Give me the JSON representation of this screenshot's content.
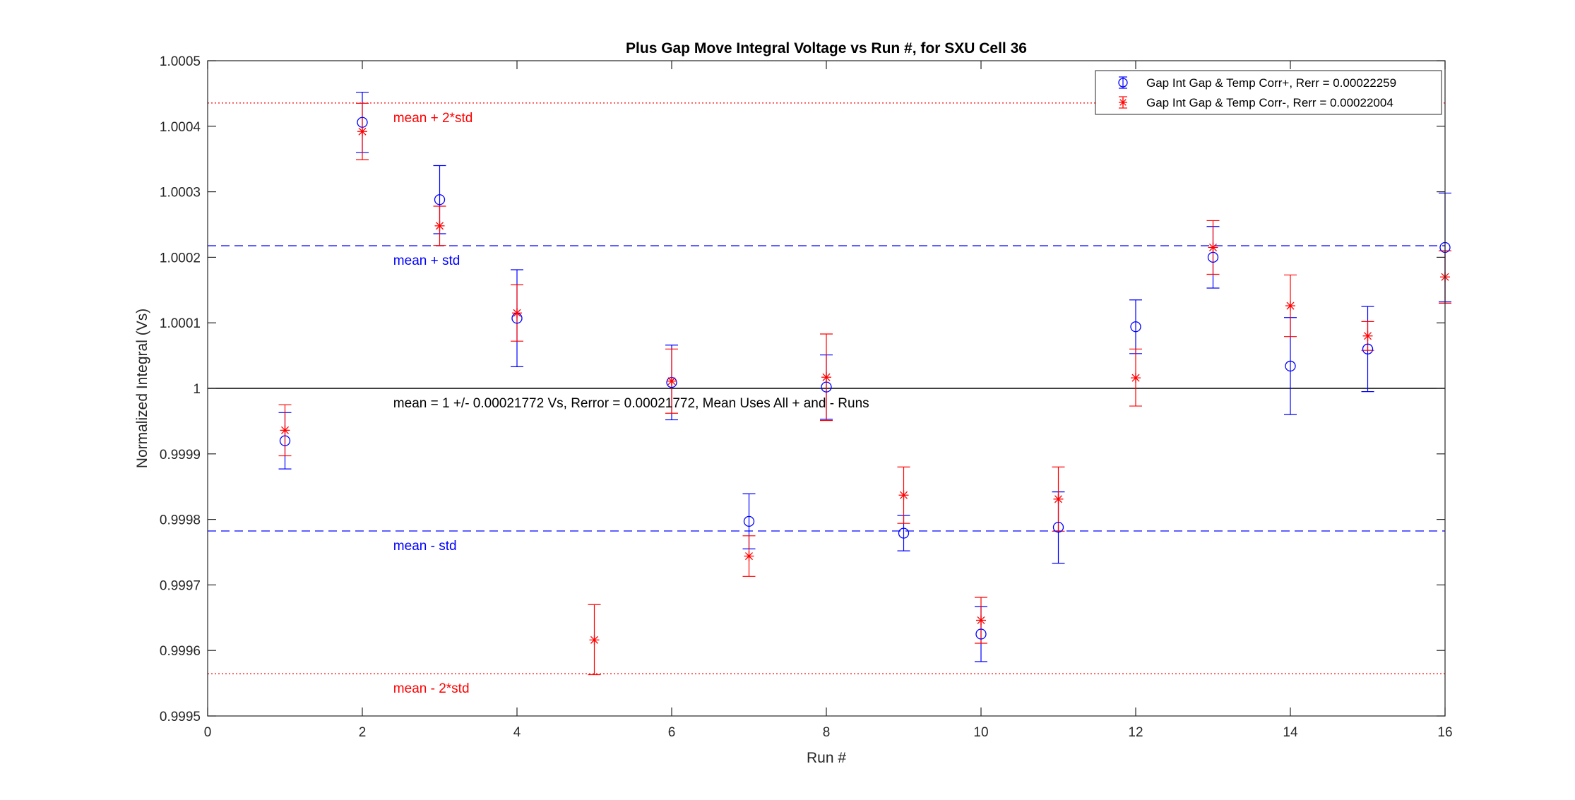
{
  "chart_data": {
    "type": "scatter",
    "title": "Plus Gap Move Integral Voltage vs Run #, for SXU Cell 36",
    "xlabel": "Run #",
    "ylabel": "Normalized Integral (Vs)",
    "xlim": [
      0,
      16
    ],
    "ylim": [
      0.9995,
      1.0005
    ],
    "x_ticks": [
      0,
      2,
      4,
      6,
      8,
      10,
      12,
      14,
      16
    ],
    "x_tick_labels": [
      "0",
      "2",
      "4",
      "6",
      "8",
      "10",
      "12",
      "14",
      "16"
    ],
    "y_ticks": [
      0.9995,
      0.9996,
      0.9997,
      0.9998,
      0.9999,
      1.0,
      1.0001,
      1.0002,
      1.0003,
      1.0004,
      1.0005
    ],
    "y_tick_labels": [
      "0.9995",
      "0.9996",
      "0.9997",
      "0.9998",
      "0.9999",
      "1",
      "1.0001",
      "1.0002",
      "1.0003",
      "1.0004",
      "1.0005"
    ],
    "grid": false,
    "legend_position": "top-right",
    "series": [
      {
        "name": "Gap Int Gap & Temp Corr+, Rerr = 0.00022259",
        "marker": "circle",
        "color": "#0000ff",
        "x": [
          1,
          2,
          3,
          4,
          6,
          7,
          8,
          9,
          10,
          11,
          12,
          13,
          14,
          15,
          16
        ],
        "y": [
          0.99992,
          1.000406,
          1.000288,
          1.000107,
          1.000009,
          0.999797,
          1.000002,
          0.999779,
          0.999625,
          0.999788,
          1.000094,
          1.0002,
          1.000034,
          1.00006,
          1.000215
        ],
        "err_upper": [
          0.999963,
          1.000452,
          1.00034,
          1.000181,
          1.000066,
          0.999839,
          1.000051,
          0.999806,
          0.999667,
          0.999842,
          1.000135,
          1.000247,
          1.000108,
          1.000125,
          1.000298
        ],
        "err_lower": [
          0.999877,
          1.00036,
          1.000236,
          1.000033,
          0.999952,
          0.999755,
          0.999953,
          0.999752,
          0.999583,
          0.999733,
          1.000053,
          1.000153,
          0.99996,
          0.999995,
          1.000132
        ]
      },
      {
        "name": "Gap Int Gap & Temp  Corr-, Rerr = 0.00022004",
        "marker": "asterisk",
        "color": "#ff0000",
        "x": [
          1,
          2,
          3,
          4,
          5,
          6,
          7,
          8,
          9,
          10,
          11,
          12,
          13,
          14,
          15,
          16
        ],
        "y": [
          0.999936,
          1.000392,
          1.000248,
          1.000115,
          0.999616,
          1.000011,
          0.999744,
          1.000017,
          0.999837,
          0.999646,
          0.999831,
          1.000016,
          1.000215,
          1.000126,
          1.00008,
          1.00017
        ],
        "err_upper": [
          0.999975,
          1.000435,
          1.000278,
          1.000158,
          0.99967,
          1.00006,
          0.999775,
          1.000083,
          0.99988,
          0.999681,
          0.99988,
          1.00006,
          1.000256,
          1.000173,
          1.000102,
          1.00021
        ],
        "err_lower": [
          0.999897,
          1.000349,
          1.000218,
          1.000072,
          0.999563,
          0.999962,
          0.999713,
          0.999951,
          0.999794,
          0.999611,
          0.999782,
          0.999973,
          1.000174,
          1.000079,
          1.000058,
          1.00013
        ]
      }
    ],
    "reference_lines": [
      {
        "label": "mean + 2*std",
        "y": 1.0004355,
        "style": "dotted",
        "color": "#ff0000"
      },
      {
        "label": "mean + std",
        "y": 1.0002177,
        "style": "dashed",
        "color": "#0000ff"
      },
      {
        "label": "mean = 1 +/- 0.00021772 Vs, Rerror = 0.00021772, Mean Uses All + and - Runs",
        "y": 1.0,
        "style": "solid",
        "color": "#000000"
      },
      {
        "label": "mean - std",
        "y": 0.9997823,
        "style": "dashed",
        "color": "#0000ff"
      },
      {
        "label": "mean - 2*std",
        "y": 0.9995645,
        "style": "dotted",
        "color": "#ff0000"
      }
    ]
  }
}
